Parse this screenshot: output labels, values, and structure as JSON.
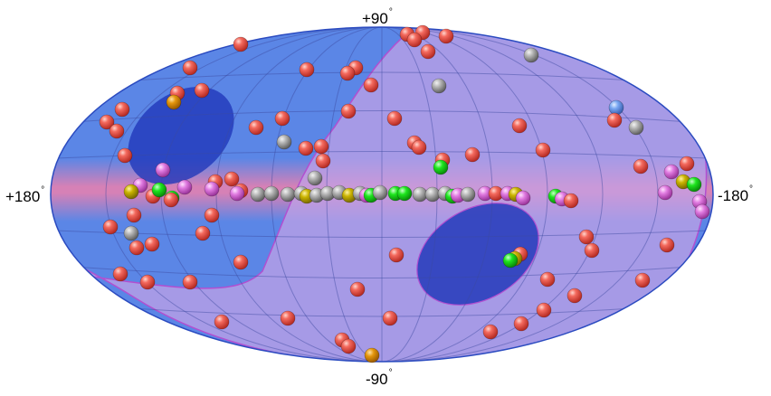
{
  "map": {
    "projection": "Aitoff (all-sky, galactic)",
    "colors": {
      "sky_background": "#5b86e6",
      "galactic_plane_glow": "#ff7fa6",
      "exposure_band": "#b88ad8",
      "exposure_band_outline": "#b24fd0",
      "deep_field": "#1f36b8",
      "graticule": "#3b4aa0"
    },
    "labels": {
      "top": "+90",
      "bottom": "-90",
      "left": "+180",
      "right": "-180",
      "degree_symbol": "°"
    },
    "legend_colors": {
      "red": "#f05a5a",
      "gray": "#a9a9a9",
      "green": "#19e619",
      "yellow": "#c8b400",
      "magenta": "#e070e0",
      "orange": "#e0900a",
      "blue": "#6a9ef0"
    }
  }
}
